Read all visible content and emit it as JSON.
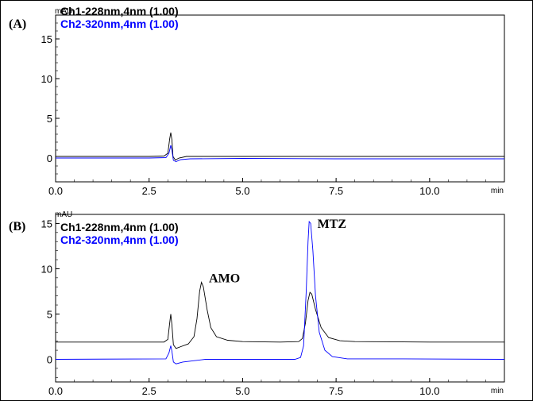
{
  "chart_data": [
    {
      "type": "line",
      "panel_label": "(A)",
      "ylabel": "mAU",
      "xlabel": "min",
      "xlim": [
        0,
        12
      ],
      "ylim": [
        -3,
        18
      ],
      "xticks": [
        0.0,
        2.5,
        5.0,
        7.5,
        10.0
      ],
      "xtick_labels": [
        "0.0",
        "2.5",
        "5.0",
        "7.5",
        "10.0"
      ],
      "yticks": [
        0,
        5,
        10,
        15
      ],
      "ytick_labels": [
        "0",
        "5",
        "10",
        "15"
      ],
      "legend_position": "top-left",
      "grid": false,
      "series": [
        {
          "name": "Ch1-228nm,4nm (1.00)",
          "color": "#000000",
          "points": [
            [
              0.0,
              0.2
            ],
            [
              2.5,
              0.2
            ],
            [
              2.9,
              0.25
            ],
            [
              3.0,
              0.6
            ],
            [
              3.05,
              2.4
            ],
            [
              3.08,
              3.2
            ],
            [
              3.11,
              2.3
            ],
            [
              3.14,
              0.2
            ],
            [
              3.2,
              -0.25
            ],
            [
              3.3,
              0.0
            ],
            [
              3.5,
              0.2
            ],
            [
              5.0,
              0.2
            ],
            [
              7.5,
              0.2
            ],
            [
              10.0,
              0.2
            ],
            [
              12.0,
              0.2
            ]
          ]
        },
        {
          "name": "Ch2-320nm,4nm (1.00)",
          "color": "#0000ff",
          "points": [
            [
              0.0,
              0.0
            ],
            [
              2.5,
              0.0
            ],
            [
              2.95,
              0.05
            ],
            [
              3.03,
              0.6
            ],
            [
              3.08,
              1.6
            ],
            [
              3.11,
              1.0
            ],
            [
              3.15,
              -0.3
            ],
            [
              3.22,
              -0.45
            ],
            [
              3.35,
              -0.2
            ],
            [
              3.6,
              -0.1
            ],
            [
              5.0,
              -0.05
            ],
            [
              7.5,
              -0.1
            ],
            [
              10.0,
              -0.1
            ],
            [
              12.0,
              -0.1
            ]
          ]
        }
      ]
    },
    {
      "type": "line",
      "panel_label": "(B)",
      "ylabel": "mAU",
      "xlabel": "min",
      "xlim": [
        0,
        12
      ],
      "ylim": [
        -2.5,
        16
      ],
      "xticks": [
        0.0,
        2.5,
        5.0,
        7.5,
        10.0
      ],
      "xtick_labels": [
        "0.0",
        "2.5",
        "5.0",
        "7.5",
        "10.0"
      ],
      "yticks": [
        0,
        5,
        10,
        15
      ],
      "ytick_labels": [
        "0",
        "5",
        "10",
        "15"
      ],
      "legend_position": "top-left",
      "grid": false,
      "annotations": [
        {
          "text": "AMO",
          "x": 4.1,
          "y": 8.5
        },
        {
          "text": "MTZ",
          "x": 7.0,
          "y": 14.5
        }
      ],
      "series": [
        {
          "name": "Ch1-228nm,4nm (1.00)",
          "color": "#000000",
          "points": [
            [
              0.0,
              1.9
            ],
            [
              2.9,
              1.9
            ],
            [
              3.0,
              2.2
            ],
            [
              3.05,
              4.0
            ],
            [
              3.08,
              5.0
            ],
            [
              3.11,
              3.8
            ],
            [
              3.15,
              1.6
            ],
            [
              3.22,
              1.2
            ],
            [
              3.35,
              1.4
            ],
            [
              3.55,
              1.7
            ],
            [
              3.7,
              2.5
            ],
            [
              3.78,
              4.5
            ],
            [
              3.85,
              7.5
            ],
            [
              3.9,
              8.5
            ],
            [
              3.95,
              8.0
            ],
            [
              4.05,
              5.5
            ],
            [
              4.15,
              3.5
            ],
            [
              4.3,
              2.5
            ],
            [
              4.6,
              2.1
            ],
            [
              5.0,
              1.95
            ],
            [
              6.0,
              1.9
            ],
            [
              6.5,
              1.95
            ],
            [
              6.6,
              2.3
            ],
            [
              6.68,
              4.0
            ],
            [
              6.75,
              6.5
            ],
            [
              6.8,
              7.4
            ],
            [
              6.85,
              7.2
            ],
            [
              6.95,
              5.5
            ],
            [
              7.1,
              3.5
            ],
            [
              7.3,
              2.4
            ],
            [
              7.6,
              2.05
            ],
            [
              8.0,
              1.95
            ],
            [
              10.0,
              1.9
            ],
            [
              12.0,
              1.9
            ]
          ]
        },
        {
          "name": "Ch2-320nm,4nm (1.00)",
          "color": "#0000ff",
          "points": [
            [
              0.0,
              0.0
            ],
            [
              2.95,
              0.05
            ],
            [
              3.03,
              0.7
            ],
            [
              3.08,
              1.5
            ],
            [
              3.11,
              0.9
            ],
            [
              3.15,
              -0.3
            ],
            [
              3.22,
              -0.5
            ],
            [
              3.4,
              -0.3
            ],
            [
              3.6,
              -0.2
            ],
            [
              4.0,
              0.0
            ],
            [
              5.0,
              0.0
            ],
            [
              6.4,
              0.0
            ],
            [
              6.55,
              0.2
            ],
            [
              6.63,
              1.5
            ],
            [
              6.7,
              7.5
            ],
            [
              6.75,
              13.0
            ],
            [
              6.78,
              15.2
            ],
            [
              6.82,
              15.0
            ],
            [
              6.88,
              12.0
            ],
            [
              6.95,
              7.0
            ],
            [
              7.05,
              3.0
            ],
            [
              7.2,
              1.0
            ],
            [
              7.4,
              0.3
            ],
            [
              7.8,
              0.05
            ],
            [
              9.0,
              0.05
            ],
            [
              12.0,
              0.0
            ]
          ]
        }
      ]
    }
  ]
}
